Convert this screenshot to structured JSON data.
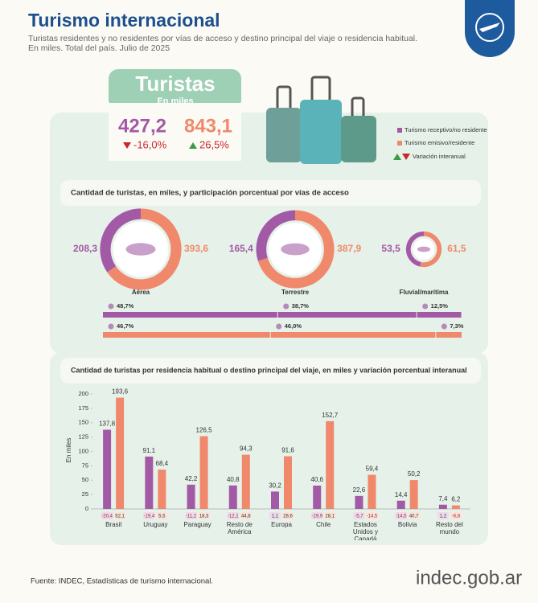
{
  "header": {
    "title": "Turismo internacional",
    "subtitle": [
      "Turistas residentes y no residentes por vías de acceso y destino principal del viaje o residencia habitual.",
      "En miles. Total del país. Julio de 2025"
    ]
  },
  "summary": {
    "title": "Turistas",
    "unit": "En miles",
    "items": [
      {
        "value": 427.2,
        "value_label": "427,2",
        "change": -16.0,
        "change_label": "-16,0%"
      },
      {
        "value": 843.1,
        "value_label": "843,1",
        "change": 26.5,
        "change_label": "26,5%"
      }
    ]
  },
  "legend": {
    "variation": "Variación interanual",
    "up_color": "#3a9a4a",
    "down_color": "#c8282d"
  },
  "chart_data": [
    {
      "type": "donut",
      "title": "Cantidad de turistas, en miles, y participación porcentual por vías de acceso",
      "categories": [
        "Aérea",
        "Terrestre",
        "Fluvial/marítima"
      ],
      "series": [
        {
          "name": "Turismo receptivo/no residente",
          "color": "#a35aa6",
          "values": [
            208.3,
            165.4,
            53.5
          ],
          "value_labels": [
            "208,3",
            "165,4",
            "53,5"
          ]
        },
        {
          "name": "Turismo emisivo/residente",
          "color": "#f0896b",
          "values": [
            393.6,
            387.9,
            61.5
          ],
          "value_labels": [
            "393,6",
            "387,9",
            "61,5"
          ]
        }
      ]
    },
    {
      "type": "share-bar",
      "xlim": [
        0,
        100
      ],
      "series": [
        {
          "color": "#a35aa6",
          "values": [
            48.7,
            38.7,
            12.5
          ],
          "value_labels": [
            "48,7%",
            "38,7%",
            "12,5%"
          ]
        },
        {
          "color": "#f0896b",
          "values": [
            46.7,
            46.0,
            7.3
          ],
          "value_labels": [
            "46,7%",
            "46,0%",
            "7,3%"
          ]
        }
      ]
    },
    {
      "type": "bar",
      "title": "Cantidad de turistas por residencia habitual o destino principal del viaje, en miles y variación porcentual interanual",
      "y_label": "En miles",
      "categories": [
        "Brasil",
        "Uruguay",
        "Paraguay",
        "Resto de América",
        "Europa",
        "Chile",
        "Estados Unidos y Canadá",
        "Bolivia",
        "Resto del mundo"
      ],
      "ylim": [
        0,
        200
      ],
      "yticks": [
        0,
        25,
        50,
        75,
        100,
        125,
        150,
        175,
        200
      ],
      "series": [
        {
          "color": "#a35aa6",
          "values": [
            137.8,
            91.1,
            42.2,
            40.8,
            30.2,
            40.6,
            22.6,
            14.4,
            7.4
          ],
          "value_labels": [
            "137,8",
            "91,1",
            "42,2",
            "40,8",
            "30,2",
            "40,6",
            "22,6",
            "14,4",
            "7,4"
          ],
          "variation": [
            -20.4,
            -19.4,
            -11.2,
            -12.1,
            1.1,
            -19.9,
            -5.7,
            -14.5,
            1.2
          ],
          "variation_labels": [
            "-20,4",
            "-19,4",
            "-11,2",
            "-12,1",
            "1,1",
            "-19,9",
            "-5,7",
            "-14,5",
            "1,2"
          ]
        },
        {
          "color": "#f0896b",
          "values": [
            193.6,
            68.4,
            126.5,
            94.3,
            91.6,
            152.7,
            59.4,
            50.2,
            6.2
          ],
          "value_labels": [
            "193,6",
            "68,4",
            "126,5",
            "94,3",
            "91,6",
            "152,7",
            "59,4",
            "50,2",
            "6,2"
          ],
          "variation": [
            52.1,
            5.5,
            18.3,
            44.8,
            28.6,
            28.1,
            -14.5,
            40.7,
            -6.8
          ],
          "variation_labels": [
            "52,1",
            "5,5",
            "18,3",
            "44,8",
            "28,6",
            "28,1",
            "-14,5",
            "40,7",
            "-6,8"
          ]
        }
      ]
    }
  ],
  "footer": {
    "source": "Fuente: INDEC, Estadísticas de turismo internacional.",
    "logo": "indec.gob.ar"
  }
}
